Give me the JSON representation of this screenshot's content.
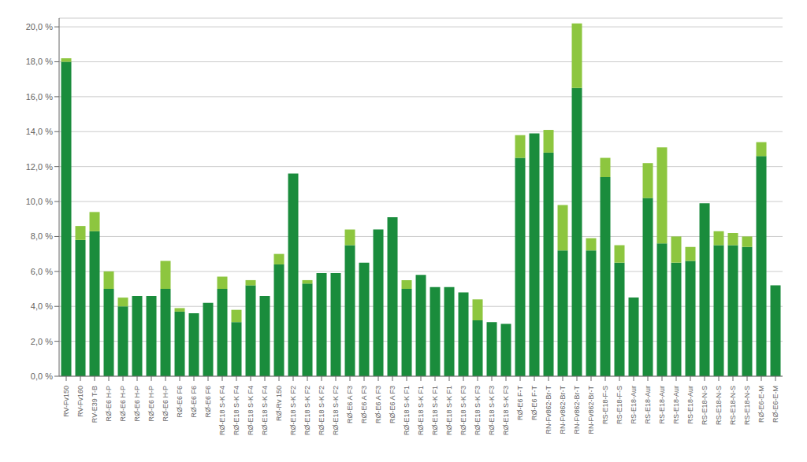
{
  "chart_data": {
    "type": "bar",
    "stacked": true,
    "grid": true,
    "categories": [
      "RV-Fv150",
      "RV-Fv160",
      "RV-E39 T-B",
      "RØ-E6 H-P",
      "RØ-E6 H-P",
      "RØ-E6 H-P",
      "RØ-E6 H-P",
      "RØ-E6 H-P",
      "RØ-E6 F6",
      "RØ-E6 F6",
      "RØ-E6 F6",
      "RØ-E18 S-K F4",
      "RØ-E18 S-K F4",
      "RØ-E18 S-K F4",
      "RØ-E18 S-K F4",
      "RØ-Rv 150",
      "RØ-E18 S-K F2",
      "RØ-E18 S-K F2",
      "RØ-E18 S-K F2",
      "RØ-E18 S-K F2",
      "RØ-E6 A F3",
      "RØ-E6 A F3",
      "RØ-E6 A F3",
      "RØ-E6 A F3",
      "RØ-E18 S-K F1",
      "RØ-E18 S-K F1",
      "RØ-E18 S-K F1",
      "RØ-E18 S-K F1",
      "RØ-E18 S-K F3",
      "RØ-E18 S-K F3",
      "RØ-E18 S-K F3",
      "RØ-E18 S-K F3",
      "RØ-E6 F-T",
      "RØ-E6 F-T",
      "RN-Fv862-Br-T",
      "RN-Fv862-Br-T",
      "RN-Fv862-Br-T",
      "RN-Fv862-Br-T",
      "RS-E18-F-S",
      "RS-E18-F-S",
      "RS-E18-Aur",
      "RS-E18-Aur",
      "RS-E18-Aur",
      "RS-E18-Aur",
      "RS-E18-Aur",
      "RS-E18-N-S",
      "RS-E18-N-S",
      "RS-E18-N-S",
      "RS-E18-N-S",
      "RØ-E6-E-M",
      "RØ-E6-E-M"
    ],
    "series": [
      {
        "color": "#1a8c3c",
        "values": [
          18.0,
          7.8,
          8.3,
          5.0,
          4.0,
          4.6,
          4.6,
          5.0,
          3.7,
          3.6,
          4.2,
          5.0,
          3.1,
          5.2,
          4.6,
          6.4,
          11.6,
          5.3,
          5.9,
          5.9,
          7.5,
          6.5,
          8.4,
          9.1,
          5.0,
          5.8,
          5.1,
          5.1,
          4.8,
          3.2,
          3.1,
          3.0,
          12.5,
          13.9,
          12.8,
          7.2,
          16.5,
          7.2,
          11.4,
          6.5,
          4.5,
          10.2,
          7.6,
          6.5,
          6.6,
          9.9,
          7.5,
          7.5,
          7.4,
          12.6,
          5.2
        ]
      },
      {
        "color": "#8dc63f",
        "values": [
          0.2,
          0.8,
          1.1,
          1.0,
          0.5,
          0.0,
          0.0,
          1.6,
          0.2,
          0.0,
          0.0,
          0.7,
          0.7,
          0.3,
          0.0,
          0.6,
          0.0,
          0.2,
          0.0,
          0.0,
          0.9,
          0.0,
          0.0,
          0.0,
          0.5,
          0.0,
          0.0,
          0.0,
          0.0,
          1.2,
          0.0,
          0.0,
          1.3,
          0.0,
          1.3,
          2.6,
          3.7,
          0.7,
          1.1,
          1.0,
          0.0,
          2.0,
          5.5,
          1.5,
          0.8,
          0.0,
          0.8,
          0.7,
          0.6,
          0.8,
          0.0
        ]
      }
    ],
    "ylim": [
      0,
      20.5
    ],
    "yticks": [
      {
        "value": 0,
        "label": "0,0 %"
      },
      {
        "value": 2,
        "label": "2,0 %"
      },
      {
        "value": 4,
        "label": "4,0 %"
      },
      {
        "value": 6,
        "label": "6,0 %"
      },
      {
        "value": 8,
        "label": "8,0 %"
      },
      {
        "value": 10,
        "label": "10,0 %"
      },
      {
        "value": 12,
        "label": "12,0 %"
      },
      {
        "value": 14,
        "label": "14,0 %"
      },
      {
        "value": 16,
        "label": "16,0 %"
      },
      {
        "value": 18,
        "label": "18,0 %"
      },
      {
        "value": 20,
        "label": "20,0 %"
      }
    ]
  }
}
